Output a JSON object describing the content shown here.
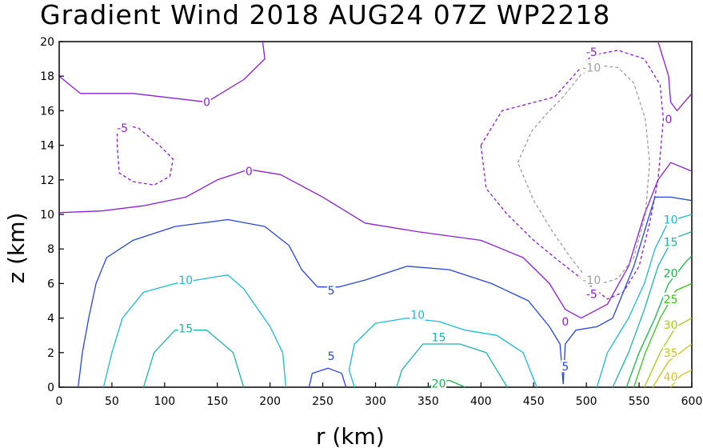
{
  "chart_data": {
    "type": "contour",
    "title": "Gradient Wind 2018 AUG24 07Z   WP2218",
    "xlabel": "r (km)",
    "ylabel": "z (km)",
    "xlim": [
      0,
      600
    ],
    "ylim": [
      0,
      20
    ],
    "xticks": [
      "0",
      "50",
      "100",
      "150",
      "200",
      "250",
      "300",
      "350",
      "400",
      "450",
      "500",
      "550",
      "600"
    ],
    "yticks": [
      "0",
      "2",
      "4",
      "6",
      "8",
      "10",
      "12",
      "14",
      "16",
      "18",
      "20"
    ],
    "grid": false,
    "contours": [
      {
        "level": 0,
        "color": "#8a1fd1",
        "dashed": false,
        "segments": [
          [
            [
              0,
              18
            ],
            [
              20,
              17
            ],
            [
              70,
              17
            ],
            [
              140,
              16.5
            ],
            [
              175,
              17.8
            ],
            [
              195,
              19
            ],
            [
              193,
              20
            ]
          ],
          [
            [
              0,
              10.1
            ],
            [
              40,
              10.2
            ],
            [
              80,
              10.5
            ],
            [
              120,
              11
            ],
            [
              150,
              12
            ],
            [
              180,
              12.6
            ],
            [
              210,
              12.3
            ],
            [
              250,
              11
            ],
            [
              290,
              9.5
            ],
            [
              340,
              9
            ],
            [
              400,
              8.5
            ],
            [
              440,
              7.5
            ],
            [
              465,
              6
            ],
            [
              480,
              4.5
            ],
            [
              495,
              4
            ],
            [
              520,
              4.8
            ],
            [
              540,
              7
            ],
            [
              555,
              10
            ],
            [
              568,
              12
            ],
            [
              580,
              13
            ],
            [
              600,
              12.5
            ]
          ],
          [
            [
              568,
              20
            ],
            [
              578,
              18
            ],
            [
              580,
              16.5
            ],
            [
              586,
              16
            ],
            [
              600,
              17
            ]
          ]
        ]
      },
      {
        "level": -5,
        "color": "#8a1fd1",
        "dashed": true,
        "segments": [
          [
            [
              55,
              15
            ],
            [
              60,
              15.2
            ],
            [
              75,
              15
            ],
            [
              95,
              14
            ],
            [
              108,
              13.2
            ],
            [
              105,
              12.2
            ],
            [
              90,
              11.7
            ],
            [
              70,
              11.9
            ],
            [
              57,
              12.4
            ],
            [
              55,
              14
            ],
            [
              55,
              15
            ]
          ],
          [
            [
              400,
              14
            ],
            [
              420,
              16
            ],
            [
              470,
              16.8
            ],
            [
              505,
              19.2
            ],
            [
              530,
              19.5
            ],
            [
              555,
              19
            ],
            [
              570,
              17.5
            ],
            [
              573,
              15.5
            ],
            [
              568,
              12
            ],
            [
              560,
              9.5
            ],
            [
              550,
              7
            ],
            [
              535,
              5.5
            ],
            [
              520,
              5.1
            ],
            [
              495,
              6.3
            ],
            [
              470,
              7.5
            ],
            [
              450,
              8.5
            ],
            [
              425,
              10
            ],
            [
              405,
              11.5
            ],
            [
              400,
              14
            ]
          ]
        ]
      },
      {
        "level": -10,
        "color": "#9e9e9e",
        "dashed": true,
        "segments": [
          [
            [
              435,
              13
            ],
            [
              448,
              14.8
            ],
            [
              462,
              15.8
            ],
            [
              478,
              16.8
            ],
            [
              495,
              18.1
            ],
            [
              515,
              18.6
            ],
            [
              530,
              18.5
            ],
            [
              545,
              17.6
            ],
            [
              556,
              15.5
            ],
            [
              560,
              13
            ],
            [
              556,
              10
            ],
            [
              545,
              7.5
            ],
            [
              530,
              6.3
            ],
            [
              515,
              6
            ],
            [
              498,
              6.5
            ],
            [
              485,
              7.5
            ],
            [
              468,
              9
            ],
            [
              450,
              10.8
            ],
            [
              435,
              13
            ]
          ]
        ]
      },
      {
        "level": 5,
        "color": "#2a45d8",
        "dashed": false,
        "segments": [
          [
            [
              18,
              0
            ],
            [
              22,
              2
            ],
            [
              28,
              4
            ],
            [
              35,
              6
            ],
            [
              45,
              7.5
            ],
            [
              70,
              8.5
            ],
            [
              110,
              9.3
            ],
            [
              160,
              9.7
            ],
            [
              195,
              9.3
            ],
            [
              218,
              8.2
            ],
            [
              230,
              6.8
            ],
            [
              245,
              5.8
            ],
            [
              265,
              5.8
            ],
            [
              290,
              6.2
            ],
            [
              330,
              7
            ],
            [
              370,
              6.8
            ],
            [
              410,
              6
            ],
            [
              445,
              5
            ],
            [
              465,
              3.5
            ],
            [
              475,
              2.5
            ],
            [
              478,
              0.2
            ],
            [
              480,
              2.5
            ],
            [
              490,
              3.3
            ],
            [
              510,
              3.5
            ],
            [
              525,
              4
            ],
            [
              535,
              5.5
            ],
            [
              545,
              7
            ],
            [
              555,
              9
            ],
            [
              565,
              11
            ],
            [
              580,
              11
            ],
            [
              600,
              10.8
            ]
          ],
          [
            [
              237,
              0
            ],
            [
              240,
              0.8
            ],
            [
              255,
              1.1
            ],
            [
              268,
              0.8
            ],
            [
              272,
              0
            ]
          ]
        ]
      },
      {
        "level": 10,
        "color": "#1fb8d2",
        "dashed": false,
        "segments": [
          [
            [
              42,
              0
            ],
            [
              50,
              2
            ],
            [
              60,
              4
            ],
            [
              80,
              5.5
            ],
            [
              110,
              6
            ],
            [
              140,
              6.3
            ],
            [
              160,
              6.5
            ],
            [
              175,
              5.7
            ],
            [
              200,
              3.5
            ],
            [
              212,
              2
            ],
            [
              215,
              0
            ]
          ],
          [
            [
              280,
              0
            ],
            [
              275,
              1
            ],
            [
              280,
              2.5
            ],
            [
              300,
              3.7
            ],
            [
              330,
              4
            ],
            [
              360,
              3.8
            ],
            [
              385,
              3.3
            ],
            [
              415,
              3
            ],
            [
              440,
              2
            ],
            [
              453,
              0
            ]
          ],
          [
            [
              510,
              0
            ],
            [
              520,
              2
            ],
            [
              540,
              4
            ],
            [
              555,
              6
            ],
            [
              565,
              8
            ],
            [
              578,
              9.6
            ],
            [
              600,
              10
            ]
          ]
        ]
      },
      {
        "level": 15,
        "color": "#20b2aa",
        "dashed": false,
        "segments": [
          [
            [
              80,
              0
            ],
            [
              90,
              2
            ],
            [
              110,
              3.3
            ],
            [
              140,
              3.3
            ],
            [
              165,
              2
            ],
            [
              175,
              0
            ]
          ],
          [
            [
              320,
              0
            ],
            [
              325,
              1
            ],
            [
              345,
              2.5
            ],
            [
              380,
              2.5
            ],
            [
              405,
              2
            ],
            [
              425,
              0
            ]
          ],
          [
            [
              525,
              0
            ],
            [
              540,
              2
            ],
            [
              555,
              4.5
            ],
            [
              568,
              7
            ],
            [
              582,
              8.6
            ],
            [
              600,
              9
            ]
          ]
        ]
      },
      {
        "level": 20,
        "color": "#19b44a",
        "dashed": false,
        "segments": [
          [
            [
              350,
              0
            ],
            [
              355,
              0.2
            ],
            [
              370,
              0.4
            ],
            [
              385,
              0
            ]
          ],
          [
            [
              538,
              0
            ],
            [
              550,
              2
            ],
            [
              565,
              4
            ],
            [
              578,
              6
            ],
            [
              595,
              7.3
            ],
            [
              600,
              7.6
            ]
          ]
        ]
      },
      {
        "level": 25,
        "color": "#3cc11a",
        "dashed": false,
        "segments": [
          [
            [
              545,
              0
            ],
            [
              556,
              2
            ],
            [
              570,
              4
            ],
            [
              585,
              5.6
            ],
            [
              600,
              6
            ]
          ]
        ]
      },
      {
        "level": 30,
        "color": "#a6c81c",
        "dashed": false,
        "segments": [
          [
            [
              555,
              0
            ],
            [
              570,
              2
            ],
            [
              585,
              3.5
            ],
            [
              600,
              4
            ]
          ]
        ]
      },
      {
        "level": 35,
        "color": "#c7c31e",
        "dashed": false,
        "segments": [
          [
            [
              563,
              0
            ],
            [
              578,
              1.5
            ],
            [
              600,
              2.5
            ]
          ]
        ]
      },
      {
        "level": 40,
        "color": "#d6c32a",
        "dashed": false,
        "segments": [
          [
            [
              580,
              0
            ],
            [
              590,
              0.7
            ],
            [
              600,
              1
            ]
          ]
        ]
      }
    ],
    "labels": [
      {
        "text": "0",
        "x": 140,
        "y": 16.5,
        "color": "#8a1fd1"
      },
      {
        "text": "0",
        "x": 180,
        "y": 12.5,
        "color": "#8a1fd1"
      },
      {
        "text": "0",
        "x": 480,
        "y": 3.8,
        "color": "#8a1fd1"
      },
      {
        "text": "0",
        "x": 578,
        "y": 15.5,
        "color": "#8a1fd1"
      },
      {
        "text": "-5",
        "x": 60,
        "y": 15,
        "color": "#8a1fd1"
      },
      {
        "text": "-5",
        "x": 505,
        "y": 19.4,
        "color": "#8a1fd1"
      },
      {
        "text": "-5",
        "x": 505,
        "y": 5.4,
        "color": "#8a1fd1"
      },
      {
        "text": "-10",
        "x": 505,
        "y": 18.5,
        "color": "#9e9e9e"
      },
      {
        "text": "-10",
        "x": 505,
        "y": 6.2,
        "color": "#9e9e9e"
      },
      {
        "text": "5",
        "x": 258,
        "y": 5.6,
        "color": "#2a45d8"
      },
      {
        "text": "5",
        "x": 258,
        "y": 1.8,
        "color": "#2a45d8"
      },
      {
        "text": "5",
        "x": 480,
        "y": 1.2,
        "color": "#2a45d8"
      },
      {
        "text": "10",
        "x": 120,
        "y": 6.2,
        "color": "#1fb8d2"
      },
      {
        "text": "10",
        "x": 340,
        "y": 4.2,
        "color": "#1fb8d2"
      },
      {
        "text": "10",
        "x": 580,
        "y": 9.7,
        "color": "#1fb8d2"
      },
      {
        "text": "15",
        "x": 120,
        "y": 3.4,
        "color": "#20b2aa"
      },
      {
        "text": "15",
        "x": 360,
        "y": 2.9,
        "color": "#20b2aa"
      },
      {
        "text": "15",
        "x": 580,
        "y": 8.4,
        "color": "#20b2aa"
      },
      {
        "text": "20",
        "x": 360,
        "y": 0.2,
        "color": "#19b44a"
      },
      {
        "text": "20",
        "x": 580,
        "y": 6.6,
        "color": "#19b44a"
      },
      {
        "text": "25",
        "x": 580,
        "y": 5.1,
        "color": "#3cc11a"
      },
      {
        "text": "30",
        "x": 580,
        "y": 3.6,
        "color": "#a6c81c"
      },
      {
        "text": "35",
        "x": 580,
        "y": 2.0,
        "color": "#c7c31e"
      },
      {
        "text": "40",
        "x": 580,
        "y": 0.6,
        "color": "#d6c32a"
      }
    ]
  }
}
